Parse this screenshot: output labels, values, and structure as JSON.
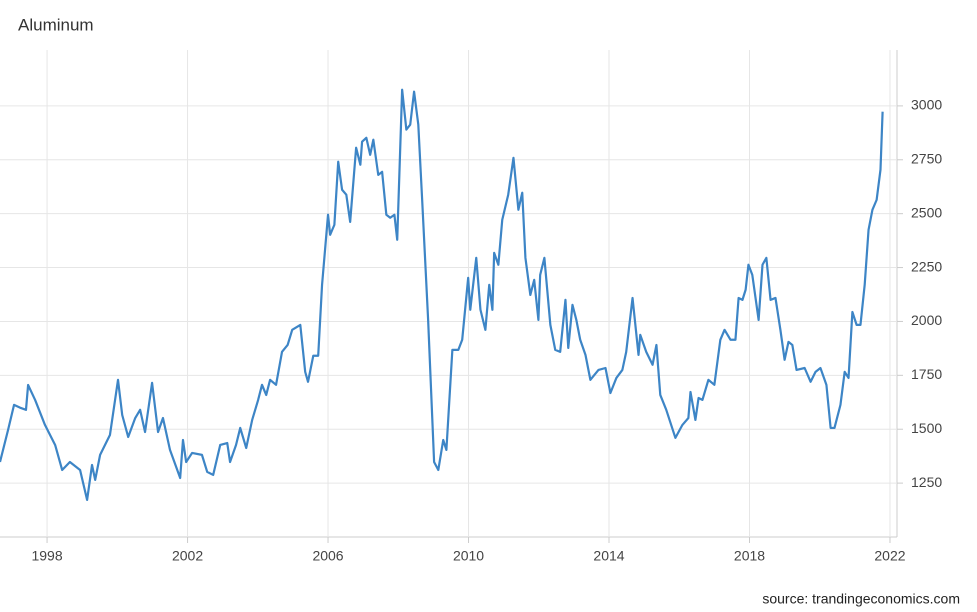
{
  "chart_data": {
    "type": "line",
    "title": "Aluminum",
    "source": "source: trandingeconomics.com",
    "xlim": [
      1996.66,
      2022.2
    ],
    "xticks": [
      1998,
      2002,
      2006,
      2010,
      2014,
      2018,
      2022
    ],
    "ylim": [
      1000,
      3250
    ],
    "yticks": [
      1250,
      1500,
      1750,
      2000,
      2250,
      2500,
      2750,
      3000
    ],
    "grid": true,
    "x": [
      1996.66,
      1996.89,
      1997.06,
      1997.23,
      1997.4,
      1997.46,
      1997.66,
      1997.94,
      1998.23,
      1998.43,
      1998.65,
      1998.94,
      1999.14,
      1999.28,
      1999.37,
      1999.51,
      1999.79,
      2000.02,
      2000.14,
      2000.31,
      2000.51,
      2000.65,
      2000.79,
      2000.99,
      2001.16,
      2001.3,
      2001.5,
      2001.79,
      2001.87,
      2001.96,
      2002.13,
      2002.41,
      2002.56,
      2002.73,
      2002.93,
      2003.13,
      2003.21,
      2003.38,
      2003.5,
      2003.67,
      2003.84,
      2004.01,
      2004.12,
      2004.24,
      2004.35,
      2004.52,
      2004.69,
      2004.85,
      2004.98,
      2005.21,
      2005.35,
      2005.43,
      2005.58,
      2005.72,
      2005.83,
      2006.0,
      2006.06,
      2006.18,
      2006.29,
      2006.4,
      2006.52,
      2006.63,
      2006.8,
      2006.92,
      2006.97,
      2007.09,
      2007.2,
      2007.29,
      2007.43,
      2007.54,
      2007.66,
      2007.77,
      2007.89,
      2007.97,
      2008.11,
      2008.23,
      2008.34,
      2008.45,
      2008.57,
      2008.68,
      2008.85,
      2009.02,
      2009.14,
      2009.28,
      2009.37,
      2009.54,
      2009.71,
      2009.82,
      2009.99,
      2010.05,
      2010.22,
      2010.34,
      2010.48,
      2010.59,
      2010.68,
      2010.73,
      2010.85,
      2010.96,
      2011.13,
      2011.28,
      2011.42,
      2011.53,
      2011.62,
      2011.76,
      2011.87,
      2011.99,
      2012.04,
      2012.16,
      2012.33,
      2012.47,
      2012.61,
      2012.76,
      2012.84,
      2012.96,
      2013.07,
      2013.18,
      2013.33,
      2013.47,
      2013.7,
      2013.9,
      2014.04,
      2014.21,
      2014.38,
      2014.49,
      2014.67,
      2014.84,
      2014.89,
      2015.06,
      2015.24,
      2015.35,
      2015.46,
      2015.63,
      2015.89,
      2016.09,
      2016.26,
      2016.32,
      2016.46,
      2016.55,
      2016.66,
      2016.83,
      2017.0,
      2017.17,
      2017.29,
      2017.46,
      2017.6,
      2017.69,
      2017.8,
      2017.89,
      2017.97,
      2018.08,
      2018.26,
      2018.37,
      2018.48,
      2018.6,
      2018.74,
      2018.88,
      2019.0,
      2019.11,
      2019.22,
      2019.34,
      2019.57,
      2019.74,
      2019.88,
      2020.02,
      2020.19,
      2020.31,
      2020.42,
      2020.59,
      2020.71,
      2020.82,
      2020.93,
      2021.05,
      2021.16,
      2021.28,
      2021.39,
      2021.5,
      2021.62,
      2021.73,
      2021.79
    ],
    "series": [
      {
        "name": "Aluminum",
        "color": "#3d85c6",
        "values": [
          1348,
          1497,
          1613,
          1600,
          1590,
          1705,
          1636,
          1520,
          1427,
          1311,
          1348,
          1311,
          1172,
          1334,
          1265,
          1381,
          1473,
          1729,
          1566,
          1464,
          1552,
          1590,
          1487,
          1715,
          1487,
          1552,
          1404,
          1274,
          1450,
          1348,
          1390,
          1381,
          1302,
          1288,
          1427,
          1436,
          1348,
          1427,
          1506,
          1413,
          1543,
          1636,
          1706,
          1659,
          1729,
          1706,
          1859,
          1891,
          1961,
          1984,
          1766,
          1720,
          1841,
          1841,
          2170,
          2495,
          2402,
          2448,
          2741,
          2611,
          2588,
          2462,
          2806,
          2727,
          2834,
          2852,
          2773,
          2843,
          2680,
          2694,
          2495,
          2481,
          2495,
          2379,
          3075,
          2890,
          2913,
          3066,
          2913,
          2564,
          2007,
          1348,
          1311,
          1450,
          1404,
          1868,
          1868,
          1915,
          2202,
          2054,
          2295,
          2054,
          1961,
          2170,
          2054,
          2318,
          2263,
          2471,
          2588,
          2759,
          2518,
          2597,
          2295,
          2123,
          2193,
          2007,
          2216,
          2295,
          1984,
          1868,
          1859,
          2100,
          1877,
          2077,
          2007,
          1915,
          1845,
          1729,
          1775,
          1784,
          1668,
          1738,
          1775,
          1859,
          2109,
          1845,
          1938,
          1859,
          1799,
          1891,
          1659,
          1590,
          1460,
          1520,
          1552,
          1673,
          1543,
          1645,
          1636,
          1729,
          1706,
          1915,
          1961,
          1915,
          1915,
          2109,
          2100,
          2147,
          2263,
          2216,
          2007,
          2263,
          2295,
          2100,
          2109,
          1961,
          1822,
          1905,
          1891,
          1775,
          1784,
          1720,
          1766,
          1784,
          1706,
          1506,
          1506,
          1613,
          1766,
          1738,
          2044,
          1984,
          1984,
          2170,
          2425,
          2518,
          2564,
          2704,
          2973
        ]
      }
    ]
  }
}
